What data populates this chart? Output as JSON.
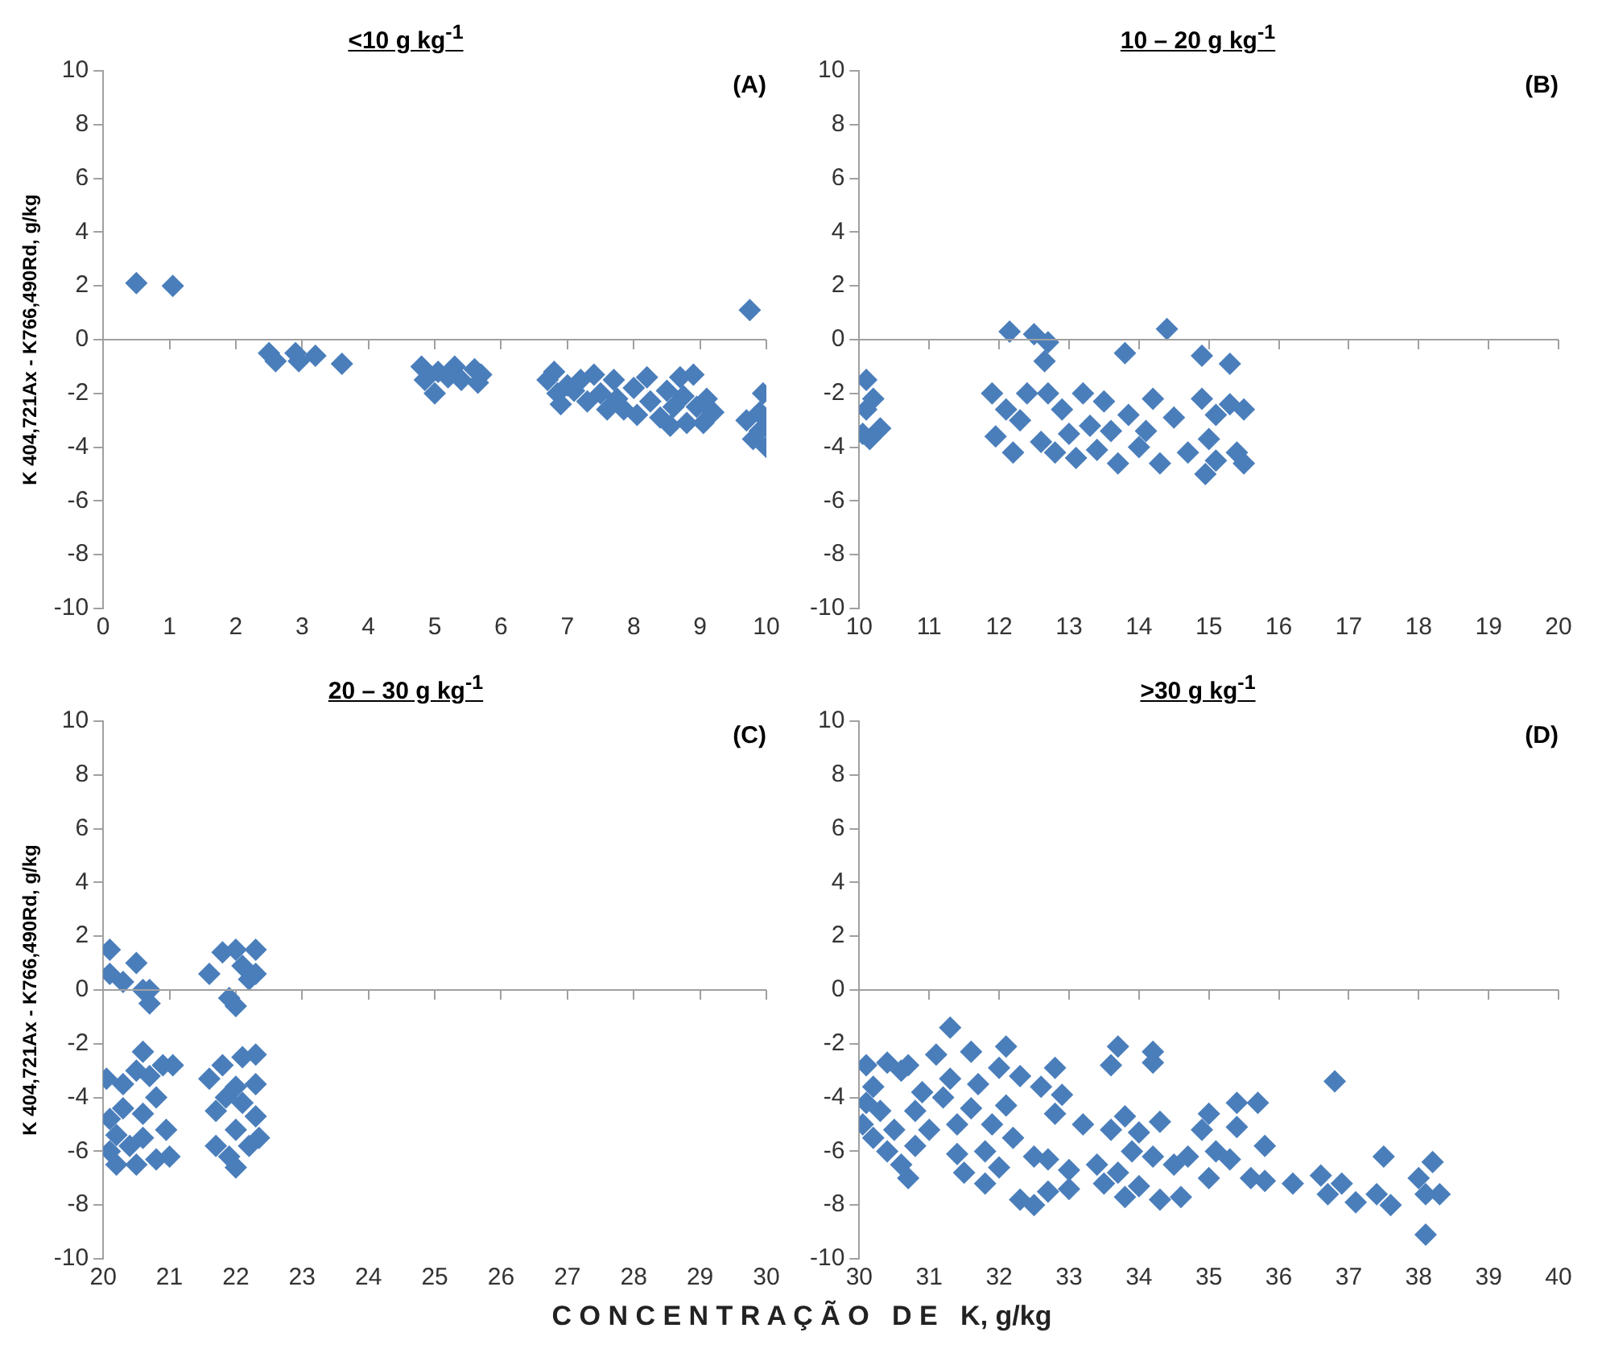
{
  "chart_data": [
    {
      "type": "scatter",
      "title": "<10 g kg$^{-1}$",
      "ref_lines": [
        {
          "axis": "y",
          "value": 0,
          "color": "#a0a0a0"
        }
      ],
      "ylabel": "K 404,721Ax - K766,490Rd, g/kg",
      "annotations": [
        "(A)"
      ],
      "color": "#4a7ebb",
      "marker": "diamond",
      "grid": false,
      "legend": false,
      "xlim": [
        0,
        10
      ],
      "xticks": [
        0,
        1,
        2,
        3,
        4,
        5,
        6,
        7,
        8,
        9,
        10
      ],
      "ylim": [
        -10,
        10
      ],
      "yticks": [
        -10,
        -8,
        -6,
        -4,
        -2,
        0,
        2,
        4,
        6,
        8,
        10
      ],
      "x": [
        0.5,
        1.05,
        2.5,
        2.6,
        2.9,
        2.95,
        3.2,
        3.6,
        4.8,
        4.85,
        5.0,
        5.05,
        5.2,
        5.3,
        5.4,
        5.6,
        5.65,
        5.7,
        6.7,
        6.8,
        6.85,
        6.9,
        7.0,
        7.1,
        7.2,
        7.3,
        7.4,
        7.5,
        7.6,
        7.7,
        7.75,
        7.85,
        8.0,
        8.05,
        8.2,
        8.25,
        8.4,
        8.5,
        8.55,
        8.6,
        8.7,
        8.75,
        8.8,
        8.9,
        8.95,
        9.05,
        9.1,
        9.2,
        9.75,
        9.7,
        9.8,
        9.9,
        9.95,
        10.0,
        10.0,
        9.9
      ],
      "values": [
        2.1,
        2.0,
        -0.5,
        -0.8,
        -0.5,
        -0.8,
        -0.6,
        -0.9,
        -1.0,
        -1.5,
        -2.0,
        -1.2,
        -1.4,
        -1.0,
        -1.5,
        -1.1,
        -1.6,
        -1.3,
        -1.5,
        -1.2,
        -2.0,
        -2.4,
        -1.7,
        -1.9,
        -1.5,
        -2.3,
        -1.3,
        -2.0,
        -2.6,
        -1.5,
        -2.2,
        -2.6,
        -1.8,
        -2.8,
        -1.4,
        -2.3,
        -2.9,
        -1.9,
        -3.2,
        -2.5,
        -1.4,
        -2.1,
        -3.1,
        -1.3,
        -2.5,
        -3.1,
        -2.2,
        -2.7,
        1.1,
        -3.0,
        -3.7,
        -2.7,
        -2.0,
        -3.0,
        -4.0,
        -3.4
      ]
    },
    {
      "type": "scatter",
      "title": "10 – 20 g kg$^{-1}$",
      "ref_lines": [
        {
          "axis": "y",
          "value": 0,
          "color": "#a0a0a0"
        }
      ],
      "annotations": [
        "(B)"
      ],
      "color": "#4a7ebb",
      "marker": "diamond",
      "grid": false,
      "legend": false,
      "xlim": [
        10,
        20
      ],
      "xticks": [
        10,
        11,
        12,
        13,
        14,
        15,
        16,
        17,
        18,
        19,
        20
      ],
      "ylim": [
        -10,
        10
      ],
      "yticks": [
        -10,
        -8,
        -6,
        -4,
        -2,
        0,
        2,
        4,
        6,
        8,
        10
      ],
      "x": [
        10.1,
        10.1,
        10.2,
        10.05,
        10.3,
        10.15,
        11.9,
        11.95,
        12.1,
        12.15,
        12.2,
        12.3,
        12.4,
        12.5,
        12.6,
        12.65,
        12.7,
        12.7,
        12.8,
        12.9,
        13.0,
        13.1,
        13.2,
        13.3,
        13.4,
        13.5,
        13.6,
        13.7,
        13.8,
        13.85,
        14.0,
        14.1,
        14.2,
        14.3,
        14.4,
        14.5,
        14.7,
        14.9,
        14.9,
        14.95,
        15.0,
        15.1,
        15.3,
        15.3,
        15.4,
        15.5,
        15.5,
        15.1
      ],
      "values": [
        -1.5,
        -2.6,
        -2.2,
        -3.5,
        -3.3,
        -3.7,
        -2.0,
        -3.6,
        -2.6,
        0.3,
        -4.2,
        -3.0,
        -2.0,
        0.2,
        -3.8,
        -0.8,
        -0.1,
        -2.0,
        -4.2,
        -2.6,
        -3.5,
        -4.4,
        -2.0,
        -3.2,
        -4.1,
        -2.3,
        -3.4,
        -4.6,
        -0.5,
        -2.8,
        -4.0,
        -3.4,
        -2.2,
        -4.6,
        0.4,
        -2.9,
        -4.2,
        -0.6,
        -2.2,
        -5.0,
        -3.7,
        -4.5,
        -0.9,
        -2.4,
        -4.2,
        -2.6,
        -4.6,
        -2.8
      ]
    },
    {
      "type": "scatter",
      "title": "20 – 30 g kg$^{-1}$",
      "ref_lines": [
        {
          "axis": "y",
          "value": 0,
          "color": "#a0a0a0"
        }
      ],
      "ylabel": "K 404,721Ax - K766,490Rd, g/kg",
      "xlabel": "C O N C E N T R A Ç Ã O   D E   K, g/kg",
      "annotations": [
        "(C)"
      ],
      "color": "#4a7ebb",
      "marker": "diamond",
      "grid": false,
      "legend": false,
      "xlim": [
        20,
        30
      ],
      "xticks": [
        20,
        21,
        22,
        23,
        24,
        25,
        26,
        27,
        28,
        29,
        30
      ],
      "ylim": [
        -10,
        10
      ],
      "yticks": [
        -10,
        -8,
        -6,
        -4,
        -2,
        0,
        2,
        4,
        6,
        8,
        10
      ],
      "x": [
        20.1,
        20.1,
        20.3,
        20.5,
        20.6,
        20.7,
        20.7,
        20.05,
        20.1,
        20.1,
        20.2,
        20.2,
        20.3,
        20.3,
        20.4,
        20.5,
        20.5,
        20.6,
        20.6,
        20.6,
        20.7,
        20.8,
        20.8,
        20.9,
        20.95,
        21.0,
        21.05,
        21.6,
        21.8,
        22.0,
        21.9,
        22.0,
        22.1,
        22.2,
        22.3,
        22.3,
        21.6,
        21.7,
        21.7,
        21.8,
        21.9,
        22.0,
        22.0,
        22.0,
        22.1,
        22.1,
        22.2,
        22.3,
        22.3,
        22.3,
        22.35,
        21.85
      ],
      "values": [
        1.5,
        0.6,
        0.3,
        1.0,
        0.0,
        -0.5,
        0.0,
        -3.3,
        -4.8,
        -6.0,
        -6.5,
        -5.4,
        -3.5,
        -4.4,
        -5.8,
        -3.0,
        -6.5,
        -2.3,
        -4.6,
        -5.5,
        -3.2,
        -6.3,
        -4.0,
        -2.8,
        -5.2,
        -6.2,
        -2.8,
        0.6,
        1.4,
        1.5,
        -0.3,
        -0.6,
        0.9,
        0.4,
        1.5,
        0.6,
        -3.3,
        -4.5,
        -5.8,
        -2.8,
        -6.2,
        -3.6,
        -5.2,
        -6.6,
        -2.5,
        -4.2,
        -5.8,
        -2.4,
        -3.5,
        -4.7,
        -5.5,
        -4.0
      ]
    },
    {
      "type": "scatter",
      "title": ">30 g kg$^{-1}$",
      "ref_lines": [
        {
          "axis": "y",
          "value": 0,
          "color": "#a0a0a0"
        }
      ],
      "annotations": [
        "(D)"
      ],
      "color": "#4a7ebb",
      "marker": "diamond",
      "grid": false,
      "legend": false,
      "xlim": [
        30,
        40
      ],
      "xticks": [
        30,
        31,
        32,
        33,
        34,
        35,
        36,
        37,
        38,
        39,
        40
      ],
      "ylim": [
        -10,
        10
      ],
      "yticks": [
        -10,
        -8,
        -6,
        -4,
        -2,
        0,
        2,
        4,
        6,
        8,
        10
      ],
      "x": [
        30.1,
        30.05,
        30.1,
        30.2,
        30.2,
        30.3,
        30.4,
        30.4,
        30.5,
        30.6,
        30.6,
        30.7,
        30.7,
        30.8,
        30.8,
        30.9,
        31.0,
        31.1,
        31.2,
        31.3,
        31.3,
        31.4,
        31.4,
        31.5,
        31.6,
        31.6,
        31.7,
        31.8,
        31.8,
        31.9,
        32.0,
        32.0,
        32.1,
        32.1,
        32.2,
        32.3,
        32.3,
        32.5,
        32.5,
        32.6,
        32.7,
        32.7,
        32.8,
        32.8,
        32.9,
        33.0,
        33.0,
        33.2,
        33.4,
        33.5,
        33.6,
        33.6,
        33.7,
        33.7,
        33.8,
        33.8,
        33.9,
        34.0,
        34.0,
        34.2,
        34.2,
        34.2,
        34.3,
        34.3,
        34.5,
        34.6,
        34.7,
        34.9,
        35.0,
        35.0,
        35.1,
        35.3,
        35.4,
        35.4,
        35.6,
        35.7,
        35.8,
        35.8,
        36.2,
        36.6,
        36.7,
        36.8,
        36.9,
        37.1,
        37.4,
        37.5,
        37.6,
        38.0,
        38.1,
        38.1,
        38.2,
        38.3
      ],
      "values": [
        -2.8,
        -5.0,
        -4.2,
        -3.6,
        -5.5,
        -4.5,
        -6.0,
        -2.7,
        -5.2,
        -3.0,
        -6.5,
        -7.0,
        -2.8,
        -4.5,
        -5.8,
        -3.8,
        -5.2,
        -2.4,
        -4.0,
        -1.4,
        -3.3,
        -6.1,
        -5.0,
        -6.8,
        -2.3,
        -4.4,
        -3.5,
        -6.0,
        -7.2,
        -5.0,
        -2.9,
        -6.6,
        -4.3,
        -2.1,
        -5.5,
        -7.8,
        -3.2,
        -6.2,
        -8.0,
        -3.6,
        -7.5,
        -6.3,
        -2.9,
        -4.6,
        -3.9,
        -7.4,
        -6.7,
        -5.0,
        -6.5,
        -7.2,
        -2.8,
        -5.2,
        -2.1,
        -6.8,
        -7.7,
        -4.7,
        -6.0,
        -7.3,
        -5.3,
        -2.3,
        -2.7,
        -6.2,
        -4.9,
        -7.8,
        -6.5,
        -7.7,
        -6.2,
        -5.2,
        -4.6,
        -7.0,
        -6.0,
        -6.3,
        -4.2,
        -5.1,
        -7.0,
        -4.2,
        -5.8,
        -7.1,
        -7.2,
        -6.9,
        -7.6,
        -3.4,
        -7.2,
        -7.9,
        -7.6,
        -6.2,
        -8.0,
        -7.0,
        -7.6,
        -9.1,
        -6.4,
        -7.6
      ]
    }
  ]
}
